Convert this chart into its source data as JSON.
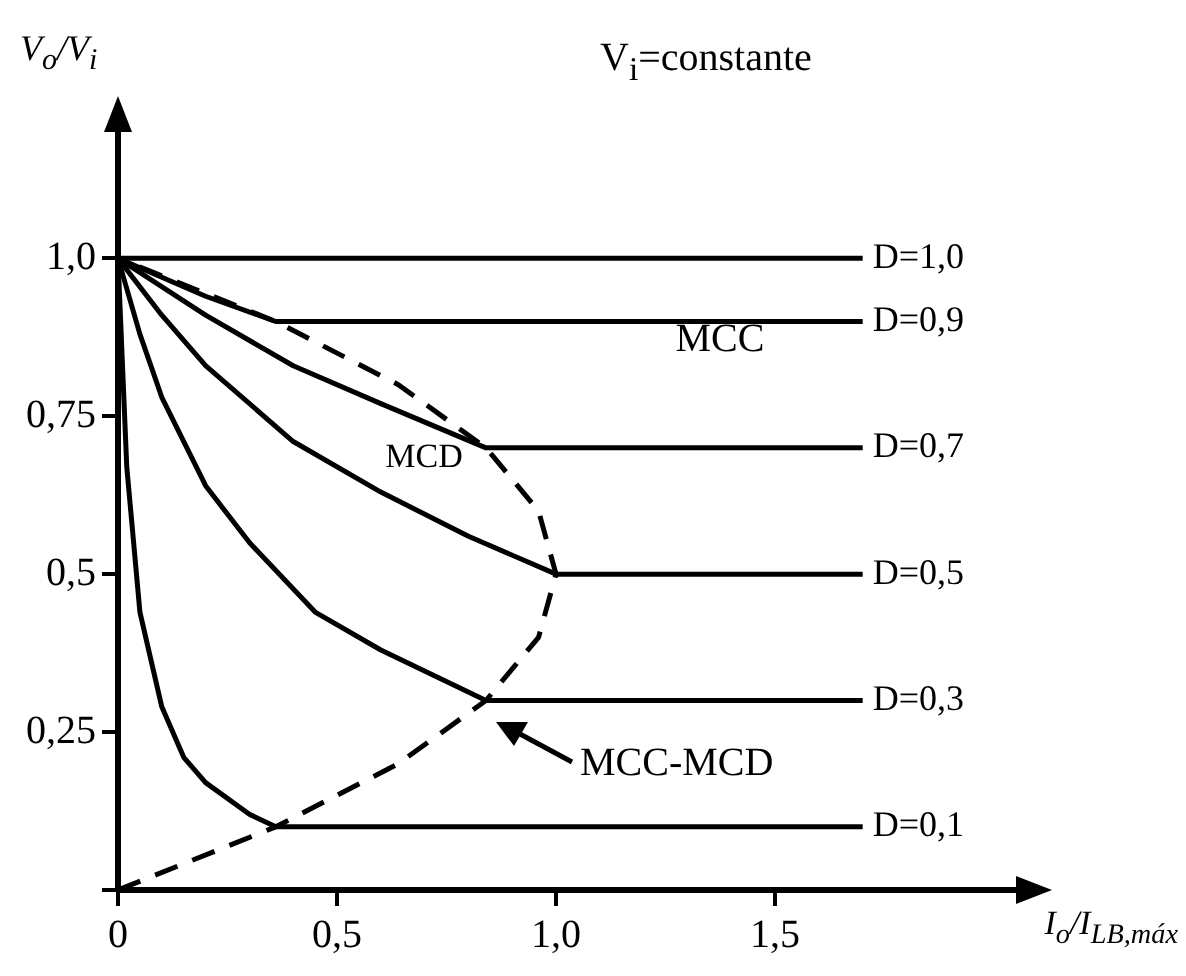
{
  "chart_data": {
    "type": "line",
    "ylabel": "V$_{o}$/V$_{i}$",
    "xlabel": "I$_{o}$/I$_{LB,máx}$",
    "annotations": [
      "V$_{i}$=constante",
      "MCC",
      "MCD",
      "MCC-MCD"
    ],
    "xlim": [
      0,
      2.05
    ],
    "ylim": [
      0,
      1.2
    ],
    "xticks": [
      {
        "value": 0,
        "label": "0"
      },
      {
        "value": 0.5,
        "label": "0,5"
      },
      {
        "value": 1,
        "label": "1,0"
      },
      {
        "value": 1.5,
        "label": "1,5"
      }
    ],
    "yticks": [
      {
        "value": 0,
        "label": null
      },
      {
        "value": 0.25,
        "label": "0,25"
      },
      {
        "value": 0.5,
        "label": "0,5"
      },
      {
        "value": 0.75,
        "label": "0,75"
      },
      {
        "value": 1,
        "label": "1,0"
      }
    ],
    "legend": false,
    "marker": "none",
    "line_style": "solid",
    "series": [
      {
        "name": "D=1,0",
        "color": "#000000",
        "x": [
          0,
          1.7
        ],
        "values": [
          1,
          1
        ]
      },
      {
        "name": "D=0,9",
        "color": "#000000",
        "x": [
          0,
          0.1,
          0.2,
          0.36,
          1.7
        ],
        "values": [
          1,
          0.97,
          0.94,
          0.9,
          0.9
        ]
      },
      {
        "name": "D=0,7",
        "color": "#000000",
        "x": [
          0,
          0.2,
          0.4,
          0.6,
          0.84,
          1.7
        ],
        "values": [
          1,
          0.91,
          0.83,
          0.77,
          0.7,
          0.7
        ]
      },
      {
        "name": "D=0,5",
        "color": "#000000",
        "x": [
          0,
          0.1,
          0.2,
          0.4,
          0.6,
          0.8,
          1,
          1.7
        ],
        "values": [
          1,
          0.91,
          0.83,
          0.71,
          0.63,
          0.56,
          0.5,
          0.5
        ]
      },
      {
        "name": "D=0,3",
        "color": "#000000",
        "x": [
          0,
          0.05,
          0.1,
          0.2,
          0.3,
          0.45,
          0.6,
          0.84,
          1.7
        ],
        "values": [
          1,
          0.88,
          0.78,
          0.64,
          0.55,
          0.44,
          0.38,
          0.3,
          0.3
        ]
      },
      {
        "name": "D=0,1",
        "color": "#000000",
        "x": [
          0,
          0.02,
          0.05,
          0.1,
          0.15,
          0.2,
          0.3,
          0.36,
          1.7
        ],
        "values": [
          1,
          0.67,
          0.44,
          0.29,
          0.21,
          0.17,
          0.12,
          0.1,
          0.1
        ]
      },
      {
        "color": "#000000",
        "line_style": "dashed",
        "x": [
          0,
          0.36,
          0.64,
          0.84,
          0.96,
          1,
          0.96,
          0.84,
          0.64,
          0.36,
          0
        ],
        "values": [
          0,
          0.1,
          0.2,
          0.3,
          0.4,
          0.5,
          0.6,
          0.7,
          0.8,
          0.9,
          1
        ]
      }
    ]
  }
}
